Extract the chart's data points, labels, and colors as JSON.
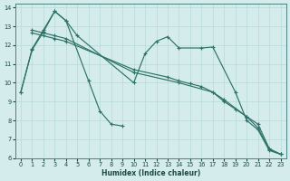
{
  "xlabel": "Humidex (Indice chaleur)",
  "bg_color": "#d4ecec",
  "grid_color": "#b8d8d8",
  "line_color": "#2d7268",
  "xlim": [
    -0.5,
    23.5
  ],
  "ylim": [
    6,
    14.2
  ],
  "yticks": [
    6,
    7,
    8,
    9,
    10,
    11,
    12,
    13,
    14
  ],
  "xticks": [
    0,
    1,
    2,
    3,
    4,
    5,
    6,
    7,
    8,
    9,
    10,
    11,
    12,
    13,
    14,
    15,
    16,
    17,
    18,
    19,
    20,
    21,
    22,
    23
  ],
  "series": [
    {
      "x": [
        0,
        1,
        2,
        3,
        4,
        6,
        7,
        8,
        9
      ],
      "y": [
        9.5,
        11.8,
        12.8,
        13.8,
        13.3,
        10.1,
        8.5,
        7.8,
        7.7
      ]
    },
    {
      "x": [
        0,
        1,
        2,
        3,
        4,
        5,
        10,
        11,
        12,
        13,
        14,
        16,
        17,
        19,
        20,
        21,
        22,
        23
      ],
      "y": [
        9.5,
        11.75,
        12.7,
        13.8,
        13.3,
        12.5,
        10.0,
        11.55,
        12.2,
        12.45,
        11.85,
        11.85,
        11.9,
        9.5,
        8.0,
        7.5,
        6.4,
        6.2
      ]
    },
    {
      "x": [
        1,
        2,
        3,
        4,
        10,
        14,
        17,
        18,
        19,
        20,
        21,
        22,
        23
      ],
      "y": [
        12.8,
        12.65,
        12.5,
        12.35,
        10.55,
        10.0,
        9.5,
        9.0,
        8.6,
        8.2,
        7.8,
        6.5,
        6.2
      ]
    },
    {
      "x": [
        1,
        2,
        3,
        4,
        10,
        13,
        14,
        15,
        16,
        17,
        18,
        20,
        21,
        22,
        23
      ],
      "y": [
        12.65,
        12.5,
        12.35,
        12.2,
        10.7,
        10.3,
        10.1,
        9.95,
        9.8,
        9.5,
        9.1,
        8.2,
        7.6,
        6.45,
        6.2
      ]
    }
  ]
}
